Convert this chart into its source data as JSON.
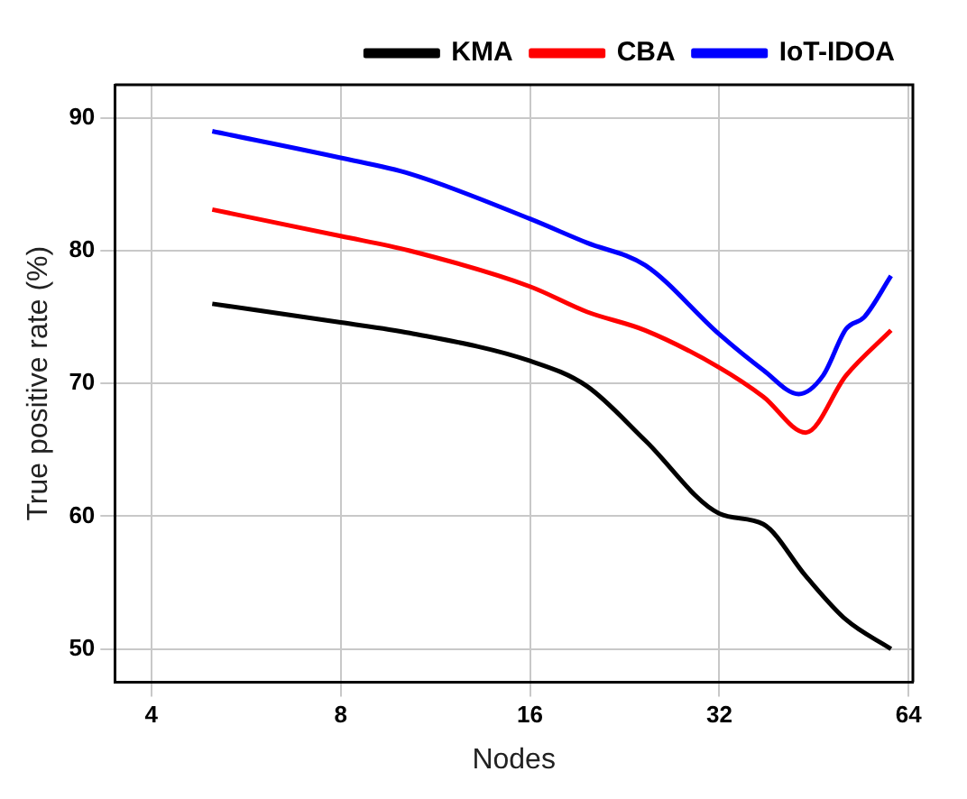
{
  "chart_data": {
    "type": "line",
    "xlabel": "Nodes",
    "ylabel": "True positive rate (%)",
    "log": "x",
    "xlim": [
      3.5,
      65
    ],
    "xticks": [
      4,
      8,
      16,
      32,
      64
    ],
    "ylim": [
      47.5,
      92.5
    ],
    "yticks": [
      50,
      60,
      70,
      80,
      90
    ],
    "grid": true,
    "legend": "top right",
    "marker": "none",
    "line_style": "solid",
    "series": [
      {
        "name": "KMA",
        "color": "#000000",
        "x": [
          5,
          8,
          10.3,
          16,
          19.7,
          24.4,
          32,
          37.6,
          43.9,
          50.9,
          60
        ],
        "values": [
          76.0,
          74.6,
          73.8,
          71.7,
          69.8,
          65.7,
          60.2,
          59.4,
          55.5,
          52.2,
          50.0
        ]
      },
      {
        "name": "CBA",
        "color": "#ff0000",
        "x": [
          5,
          8,
          10.3,
          16,
          19.7,
          24.4,
          32,
          37.6,
          43.9,
          50.9,
          60
        ],
        "values": [
          83.1,
          81.1,
          80.0,
          77.3,
          75.4,
          74.0,
          71.2,
          69.0,
          66.3,
          70.6,
          74.0
        ]
      },
      {
        "name": "IoT-IDOA",
        "color": "#0000ff",
        "x": [
          5,
          8,
          10.3,
          16,
          19.7,
          24.4,
          32,
          37.6,
          42.8,
          46.8,
          50.9,
          54.4,
          60
        ],
        "values": [
          89.0,
          87.0,
          85.8,
          82.4,
          80.6,
          78.9,
          73.7,
          71.0,
          69.2,
          70.6,
          74.1,
          75.0,
          78.1
        ]
      }
    ]
  }
}
